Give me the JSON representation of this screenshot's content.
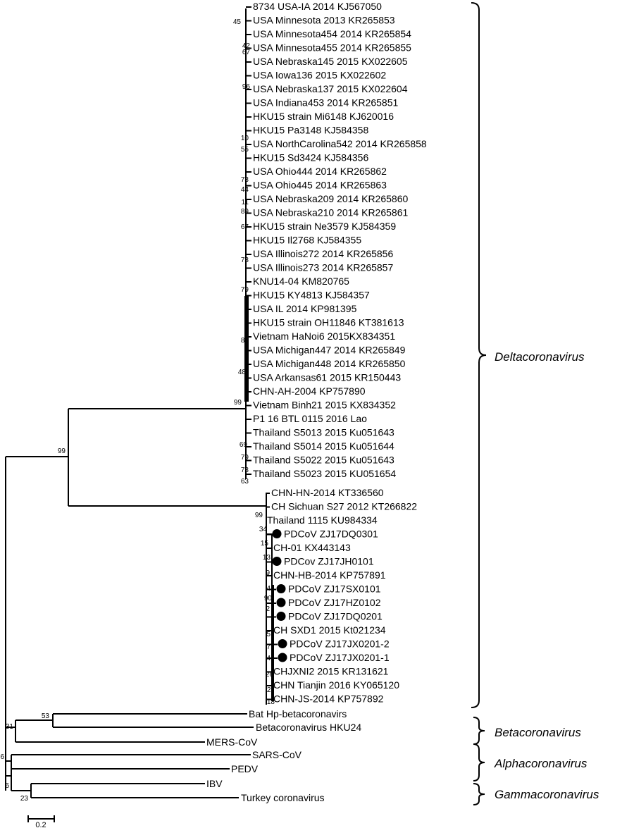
{
  "scale_bar_label": "0.2",
  "clades": {
    "delta": "Deltacoronavirus",
    "beta": "Betacoronavirus",
    "alpha": "Alphacoronavirus",
    "gamma": "Gammacoronavirus"
  },
  "delta_taxa_top": [
    "8734 USA-IA 2014 KJ567050",
    "USA Minnesota 2013 KR265853",
    "USA Minnesota454 2014  KR265854",
    "USA Minnesota455 2014 KR265855",
    "USA Nebraska145 2015 KX022605",
    "USA Iowa136 2015 KX022602",
    "USA Nebraska137 2015 KX022604",
    "USA Indiana453 2014 KR265851",
    "HKU15 strain Mi6148 KJ620016",
    "HKU15 Pa3148 KJ584358",
    "USA NorthCarolina542 2014 KR265858",
    "HKU15 Sd3424 KJ584356",
    "USA Ohio444 2014 KR265862",
    "USA Ohio445 2014 KR265863",
    "USA Nebraska209 2014 KR265860",
    "USA Nebraska210 2014 KR265861",
    "HKU15 strain Ne3579 KJ584359",
    "HKU15 Il2768 KJ584355",
    "USA Illinois272 2014 KR265856",
    "USA Illinois273 2014 KR265857",
    "KNU14-04 KM820765",
    "HKU15 KY4813 KJ584357",
    "USA IL 2014 KP981395",
    "HKU15 strain OH11846 KT381613",
    "Vietnam HaNoi6 2015KX834351",
    "USA Michigan447 2014 KR265849",
    "USA Michigan448 2014 KR265850",
    "USA Arkansas61 2015 KR150443",
    "CHN-AH-2004 KP757890",
    "Vietnam Binh21 2015 KX834352",
    "P1 16 BTL 0115 2016 Lao",
    "Thailand S5013 2015 Ku051643",
    "Thailand S5014 2015 Ku051644",
    "Thailand S5022 2015 Ku051643",
    "Thailand S5023 2015 KU051654"
  ],
  "delta_taxa_bottom": [
    {
      "label": "CHN-HN-2014 KT336560",
      "dot": false
    },
    {
      "label": "CH Sichuan S27 2012 KT266822",
      "dot": false
    },
    {
      "label": "Thailand 1115 KU984334",
      "dot": false
    },
    {
      "label": "PDCoV ZJ17DQ0301",
      "dot": true
    },
    {
      "label": "CH-01 KX443143",
      "dot": false
    },
    {
      "label": "PDCov ZJ17JH0101",
      "dot": true
    },
    {
      "label": "CHN-HB-2014 KP757891",
      "dot": false
    },
    {
      "label": "PDCoV ZJ17SX0101",
      "dot": true
    },
    {
      "label": "PDCoV ZJ17HZ0102",
      "dot": true
    },
    {
      "label": "PDCoV ZJ17DQ0201",
      "dot": true
    },
    {
      "label": "CH SXD1 2015 Kt021234",
      "dot": false
    },
    {
      "label": "PDCoV ZJ17JX0201-2",
      "dot": true
    },
    {
      "label": "PDCoV ZJ17JX0201-1",
      "dot": true
    },
    {
      "label": "CHJXNI2 2015 KR131621",
      "dot": false
    },
    {
      "label": "CHN Tianjin 2016 KY065120",
      "dot": false
    },
    {
      "label": "CHN-JS-2014 KP757892",
      "dot": false
    }
  ],
  "outgroups": [
    "Bat Hp-betacoronavirs",
    "Betacoronavirus HKU24",
    "MERS-CoV",
    "SARS-CoV",
    "PEDV",
    "IBV",
    "Turkey coronavirus"
  ],
  "bootstrap": {
    "top": [
      "45",
      "42",
      "67",
      "96",
      "10",
      "55",
      "73",
      "44",
      "11",
      "89",
      "67",
      "73",
      "79",
      "80",
      "48",
      "99",
      "69",
      "79",
      "73",
      "63"
    ],
    "bottom": [
      "99",
      "34",
      "15",
      "13",
      "9",
      "4",
      "90",
      "2",
      "5",
      "7",
      "4",
      "26",
      "27",
      "18"
    ],
    "root": [
      "99",
      "53",
      "31",
      "6",
      "6",
      "23"
    ]
  }
}
